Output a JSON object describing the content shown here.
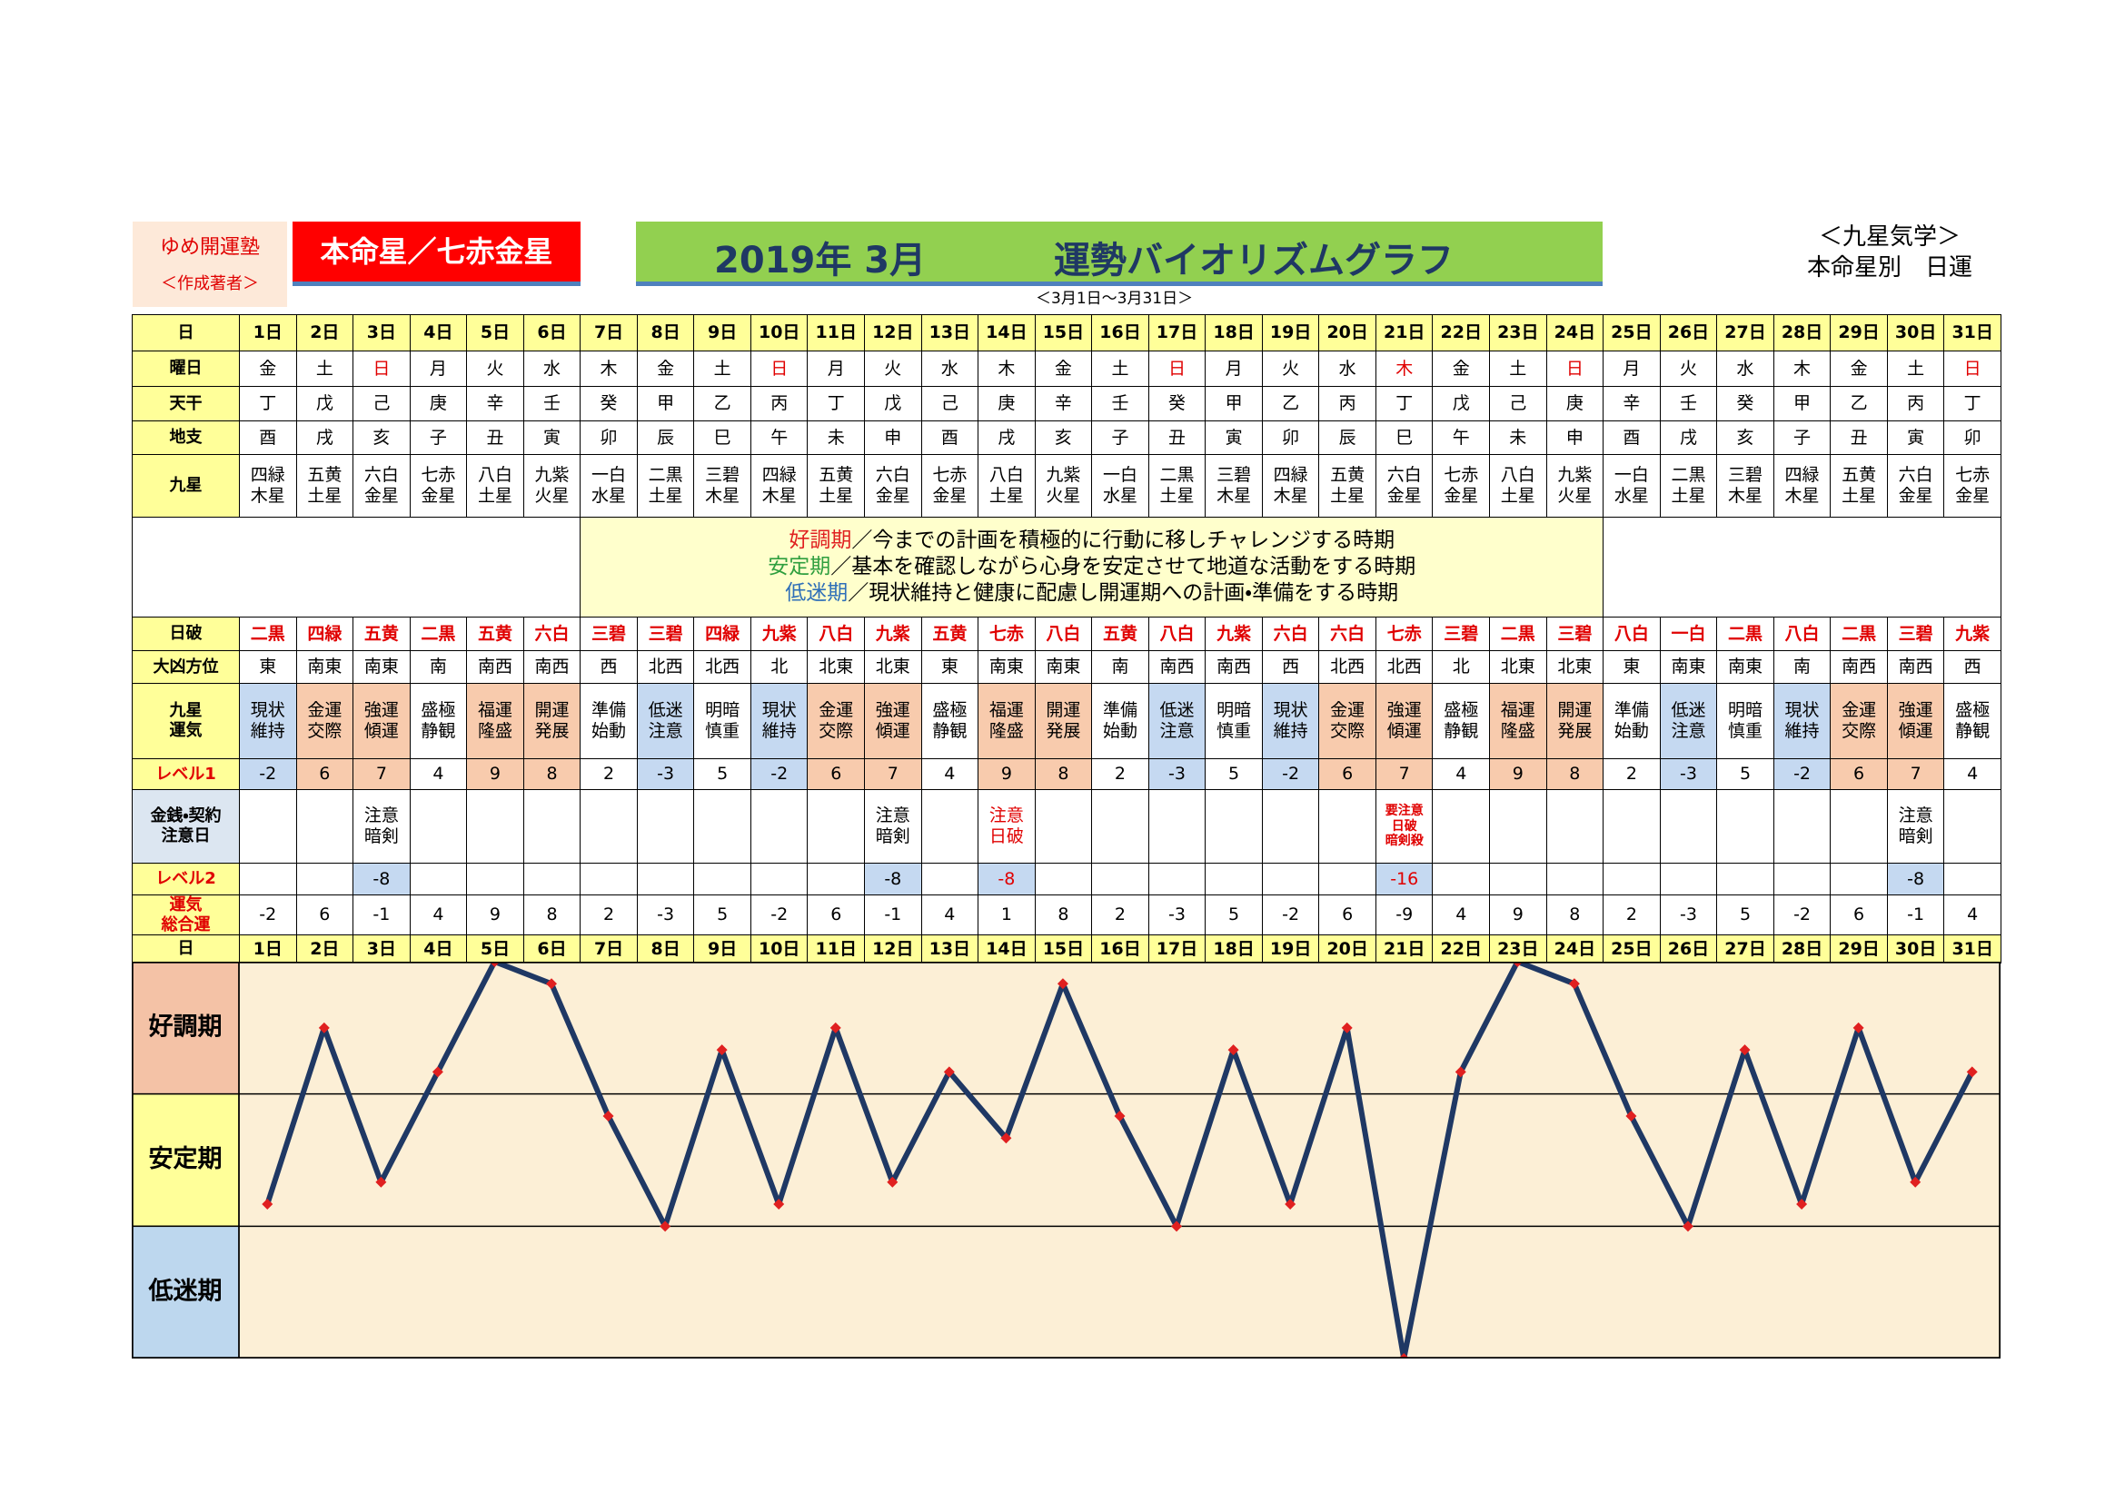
{
  "header": {
    "school": "ゆめ開運塾",
    "author": "＜作成著者＞",
    "star": "本命星／七赤金星",
    "month": "2019年 3月",
    "title": "運勢バイオリズムグラフ",
    "category": "＜九星気学＞",
    "subtitle": "本命星別　日運",
    "period": "＜3月1日～3月31日＞"
  },
  "table": {
    "fortune_colors": [
      "#c5d9f1",
      "#f8cbad",
      "#f8cbad",
      "#ffffff",
      "#f8cbad",
      "#f8cbad",
      "#ffffff",
      "#c5d9f1",
      "#ffffff",
      "#c5d9f1",
      "#f8cbad",
      "#f8cbad",
      "#ffffff",
      "#f8cbad",
      "#f8cbad",
      "#ffffff",
      "#c5d9f1",
      "#ffffff",
      "#c5d9f1",
      "#f8cbad",
      "#f8cbad",
      "#ffffff",
      "#f8cbad",
      "#f8cbad",
      "#ffffff",
      "#c5d9f1",
      "#ffffff",
      "#c5d9f1",
      "#f8cbad",
      "#f8cbad",
      "#ffffff"
    ],
    "rows": [
      {
        "label": "日",
        "bold": true,
        "bg": "#ffff99",
        "values": [
          "1日",
          "2日",
          "3日",
          "4日",
          "5日",
          "6日",
          "7日",
          "8日",
          "9日",
          "10日",
          "11日",
          "12日",
          "13日",
          "14日",
          "15日",
          "16日",
          "17日",
          "18日",
          "19日",
          "20日",
          "21日",
          "22日",
          "23日",
          "24日",
          "25日",
          "26日",
          "27日",
          "28日",
          "29日",
          "30日",
          "31日"
        ]
      },
      {
        "label": "曜日",
        "red": [
          2,
          9,
          16,
          20,
          23,
          30
        ],
        "values": [
          "金",
          "土",
          "日",
          "月",
          "火",
          "水",
          "木",
          "金",
          "土",
          "日",
          "月",
          "火",
          "水",
          "木",
          "金",
          "土",
          "日",
          "月",
          "火",
          "水",
          "木",
          "金",
          "土",
          "日",
          "月",
          "火",
          "水",
          "木",
          "金",
          "土",
          "日"
        ]
      },
      {
        "label": "天干",
        "values": [
          "丁",
          "戊",
          "己",
          "庚",
          "辛",
          "壬",
          "癸",
          "甲",
          "乙",
          "丙",
          "丁",
          "戊",
          "己",
          "庚",
          "辛",
          "壬",
          "癸",
          "甲",
          "乙",
          "丙",
          "丁",
          "戊",
          "己",
          "庚",
          "辛",
          "壬",
          "癸",
          "甲",
          "乙",
          "丙",
          "丁"
        ]
      },
      {
        "label": "地支",
        "values": [
          "酉",
          "戌",
          "亥",
          "子",
          "丑",
          "寅",
          "卯",
          "辰",
          "巳",
          "午",
          "未",
          "申",
          "酉",
          "戌",
          "亥",
          "子",
          "丑",
          "寅",
          "卯",
          "辰",
          "巳",
          "午",
          "未",
          "申",
          "酉",
          "戌",
          "亥",
          "子",
          "丑",
          "寅",
          "卯"
        ]
      },
      {
        "label": "九星",
        "values": [
          "四緑\n木星",
          "五黄\n土星",
          "六白\n金星",
          "七赤\n金星",
          "八白\n土星",
          "九紫\n火星",
          "一白\n水星",
          "二黒\n土星",
          "三碧\n木星",
          "四緑\n木星",
          "五黄\n土星",
          "六白\n金星",
          "七赤\n金星",
          "八白\n土星",
          "九紫\n火星",
          "一白\n水星",
          "二黒\n土星",
          "三碧\n木星",
          "四緑\n木星",
          "五黄\n土星",
          "六白\n金星",
          "七赤\n金星",
          "八白\n土星",
          "九紫\n火星",
          "一白\n水星",
          "二黒\n土星",
          "三碧\n木星",
          "四緑\n木星",
          "五黄\n土星",
          "六白\n金星",
          "七赤\n金星"
        ]
      },
      {
        "label": "日破",
        "value_color": "#e00000",
        "bold": true,
        "values": [
          "二黒",
          "四緑",
          "五黄",
          "二黒",
          "五黄",
          "六白",
          "三碧",
          "三碧",
          "四緑",
          "九紫",
          "八白",
          "九紫",
          "五黄",
          "七赤",
          "八白",
          "五黄",
          "八白",
          "九紫",
          "六白",
          "六白",
          "七赤",
          "三碧",
          "二黒",
          "三碧",
          "八白",
          "一白",
          "二黒",
          "八白",
          "二黒",
          "三碧",
          "九紫"
        ]
      },
      {
        "label": "大凶方位",
        "values": [
          "東",
          "南東",
          "南東",
          "南",
          "南西",
          "南西",
          "西",
          "北西",
          "北西",
          "北",
          "北東",
          "北東",
          "東",
          "南東",
          "南東",
          "南",
          "南西",
          "南西",
          "西",
          "北西",
          "北西",
          "北",
          "北東",
          "北東",
          "東",
          "南東",
          "南東",
          "南",
          "南西",
          "南西",
          "西"
        ]
      },
      {
        "label": "九星\n運気",
        "shaded": true,
        "values": [
          "現状\n維持",
          "金運\n交際",
          "強運\n傾運",
          "盛極\n静観",
          "福運\n隆盛",
          "開運\n発展",
          "準備\n始動",
          "低迷\n注意",
          "明暗\n慎重",
          "現状\n維持",
          "金運\n交際",
          "強運\n傾運",
          "盛極\n静観",
          "福運\n隆盛",
          "開運\n発展",
          "準備\n始動",
          "低迷\n注意",
          "明暗\n慎重",
          "現状\n維持",
          "金運\n交際",
          "強運\n傾運",
          "盛極\n静観",
          "福運\n隆盛",
          "開運\n発展",
          "準備\n始動",
          "低迷\n注意",
          "明暗\n慎重",
          "現状\n維持",
          "金運\n交際",
          "強運\n傾運",
          "盛極\n静観"
        ]
      },
      {
        "label": "レベル1",
        "label_color": "#e00000",
        "shaded": true,
        "values": [
          -2,
          6,
          7,
          4,
          9,
          8,
          2,
          -3,
          5,
          -2,
          6,
          7,
          4,
          9,
          8,
          2,
          -3,
          5,
          -2,
          6,
          7,
          4,
          9,
          8,
          2,
          -3,
          5,
          -2,
          6,
          7,
          4
        ]
      },
      {
        "label": "金銭・契約\n注意日",
        "label_bg": "#dce6f1",
        "red": [
          13,
          20
        ],
        "values": [
          null,
          null,
          "注意\n暗剣",
          null,
          null,
          null,
          null,
          null,
          null,
          null,
          null,
          "注意\n暗剣",
          null,
          "注意\n日破",
          null,
          null,
          null,
          null,
          null,
          null,
          "要注意\n日破\n暗剣殺",
          null,
          null,
          null,
          null,
          null,
          null,
          null,
          null,
          "注意\n暗剣",
          null
        ]
      },
      {
        "label": "レベル2",
        "label_color": "#e00000",
        "red": [
          13,
          20
        ],
        "filled_bg": "#c5d9f1",
        "values": [
          null,
          null,
          -8,
          null,
          null,
          null,
          null,
          null,
          null,
          null,
          null,
          -8,
          null,
          -8,
          null,
          null,
          null,
          null,
          null,
          null,
          -16,
          null,
          null,
          null,
          null,
          null,
          null,
          null,
          null,
          -8,
          null
        ]
      },
      {
        "label": "運気\n総合運",
        "label_color": "#e00000",
        "values": [
          -2,
          6,
          -1,
          4,
          9,
          8,
          2,
          -3,
          5,
          -2,
          6,
          -1,
          4,
          1,
          8,
          2,
          -3,
          5,
          -2,
          6,
          -9,
          4,
          9,
          8,
          2,
          -3,
          5,
          -2,
          6,
          -1,
          4
        ]
      }
    ]
  },
  "legend": [
    {
      "term": "好調期",
      "text": "／今までの計画を積極的に行動に移しチャレンジする時期",
      "color": "#e02020"
    },
    {
      "term": "安定期",
      "text": "／基本を確認しながら心身を安定させて地道な活動をする時期",
      "color": "#2e9e3e"
    },
    {
      "term": "低迷期",
      "text": "／現状維持と健康に配慮し開運期への計画・準備をする時期",
      "color": "#2f6fb8"
    }
  ],
  "graph": {
    "ylim": [
      -9,
      9
    ],
    "line_color": "#1f3864",
    "marker_color": "#e02020",
    "background": "#fcefd6",
    "bands": [
      {
        "label": "好調期",
        "from": 3,
        "to": 9,
        "color": "#f4c2a6"
      },
      {
        "label": "安定期",
        "from": -3,
        "to": 3,
        "color": "#ffff99"
      },
      {
        "label": "低迷期",
        "from": -9,
        "to": -3,
        "color": "#bdd7ee"
      }
    ]
  }
}
